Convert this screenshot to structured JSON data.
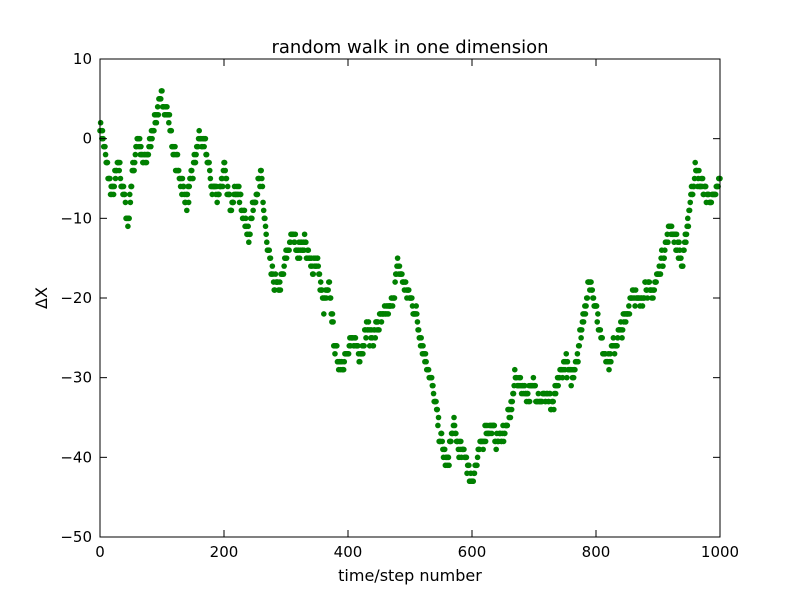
{
  "chart_data": {
    "type": "scatter",
    "title": "random walk in one dimension",
    "xlabel": "time/step number",
    "ylabel": "ΔX",
    "xlim": [
      0,
      1000
    ],
    "ylim": [
      -50,
      10
    ],
    "xticks": [
      "0",
      "200",
      "400",
      "600",
      "800",
      "1000"
    ],
    "yticks": [
      "10",
      "0",
      "−10",
      "−20",
      "−30",
      "−40",
      "−50"
    ],
    "grid": false,
    "legend": "none",
    "marker_color": "#008000",
    "series": [
      {
        "x": [
          0,
          10,
          20,
          30,
          40,
          45,
          50,
          60,
          70,
          80,
          90,
          100,
          110,
          120,
          130,
          140,
          150,
          160,
          170,
          180,
          190,
          200,
          210,
          220,
          230,
          240,
          250,
          260,
          270,
          280,
          290,
          300,
          310,
          320,
          330,
          340,
          350,
          360,
          370,
          380,
          390,
          400,
          410,
          420,
          430,
          440,
          450,
          460,
          470,
          480,
          490,
          500,
          510,
          520,
          530,
          540,
          550,
          560,
          570,
          580,
          590,
          600,
          610,
          620,
          630,
          640,
          650,
          660,
          670,
          680,
          690,
          700,
          710,
          720,
          730,
          740,
          750,
          760,
          770,
          780,
          790,
          800,
          810,
          820,
          830,
          840,
          850,
          860,
          870,
          880,
          890,
          900,
          910,
          920,
          930,
          940,
          950,
          960,
          970,
          980,
          990,
          1000
        ],
        "y": [
          2,
          -3,
          -7,
          -3,
          -8,
          -11,
          -6,
          0,
          -3,
          -1,
          3,
          5,
          3,
          -2,
          -5,
          -8,
          -4,
          0,
          -1,
          -6,
          -7,
          -4,
          -8,
          -6,
          -9,
          -12,
          -7,
          -5,
          -14,
          -18,
          -19,
          -15,
          -12,
          -14,
          -13,
          -16,
          -15,
          -21,
          -19,
          -27,
          -28,
          -27,
          -25,
          -27,
          -24,
          -25,
          -23,
          -22,
          -21,
          -16,
          -18,
          -20,
          -22,
          -26,
          -29,
          -33,
          -38,
          -41,
          -36,
          -39,
          -40,
          -43,
          -40,
          -37,
          -36,
          -38,
          -37,
          -35,
          -30,
          -31,
          -32,
          -31,
          -33,
          -32,
          -34,
          -30,
          -28,
          -30,
          -27,
          -22,
          -18,
          -21,
          -26,
          -28,
          -26,
          -24,
          -22,
          -19,
          -21,
          -18,
          -20,
          -17,
          -14,
          -11,
          -13,
          -16,
          -9,
          -4,
          -6,
          -7,
          -8,
          -5
        ]
      }
    ]
  }
}
